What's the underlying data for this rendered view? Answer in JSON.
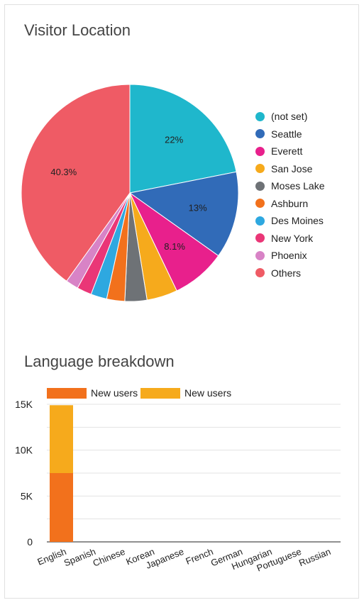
{
  "chart_data": [
    {
      "type": "pie",
      "title": "Visitor Location",
      "slices": [
        {
          "label": "(not set)",
          "value": 22,
          "data_label": "22%",
          "color": "#1fb7cc"
        },
        {
          "label": "Seattle",
          "value": 13,
          "data_label": "13%",
          "color": "#316bb8"
        },
        {
          "label": "Everett",
          "value": 8.1,
          "data_label": "8.1%",
          "color": "#e8208c"
        },
        {
          "label": "San Jose",
          "value": 4.6,
          "data_label": "",
          "color": "#f6aa1c"
        },
        {
          "label": "Moses Lake",
          "value": 3.3,
          "data_label": "",
          "color": "#6e7276"
        },
        {
          "label": "Ashburn",
          "value": 2.7,
          "data_label": "",
          "color": "#f2711c"
        },
        {
          "label": "Des Moines",
          "value": 2.4,
          "data_label": "",
          "color": "#2ea8e0"
        },
        {
          "label": "New York",
          "value": 2.2,
          "data_label": "",
          "color": "#ea3677"
        },
        {
          "label": "Phoenix",
          "value": 1.9,
          "data_label": "",
          "color": "#d883c6"
        },
        {
          "label": "Others",
          "value": 40.3,
          "data_label": "40.3%",
          "color": "#ef5b65"
        }
      ],
      "legend_position": "right"
    },
    {
      "type": "bar",
      "stacked": true,
      "title": "Language breakdown",
      "categories": [
        "English",
        "Spanish",
        "Chinese",
        "Korean",
        "Japanese",
        "French",
        "German",
        "Hungarian",
        "Portuguese",
        "Russian"
      ],
      "series": [
        {
          "name": "New users",
          "color": "#f2711c",
          "values": [
            7500,
            0,
            0,
            0,
            0,
            0,
            0,
            0,
            0,
            0
          ]
        },
        {
          "name": "New users",
          "color": "#f6aa1c",
          "values": [
            7400,
            0,
            0,
            0,
            0,
            0,
            0,
            0,
            0,
            0
          ]
        }
      ],
      "ylim": [
        0,
        15000
      ],
      "yticks": [
        0,
        5000,
        10000,
        15000
      ],
      "ytick_labels": [
        "0",
        "5K",
        "10K",
        "15K"
      ],
      "grid": true,
      "legend_position": "top-left"
    }
  ]
}
